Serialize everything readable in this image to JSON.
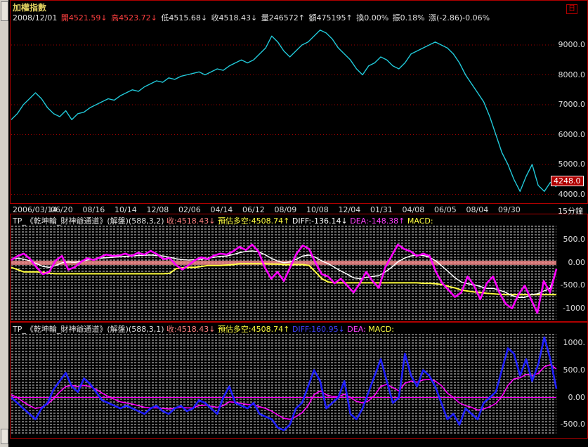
{
  "app": {
    "title": "加權指數",
    "period": "15分鐘",
    "last_price_tag": "4248.0"
  },
  "info": {
    "date": "2008/12/01",
    "open": "開4521.59↓",
    "high": "高4523.72↓",
    "low": "低4515.68↓",
    "close": "收4518.43↓",
    "volume": "量246572↑",
    "amount": "額475195↑",
    "turnover": "換0.00%",
    "amplitude": "振0.18%",
    "change": "漲(-2.86)-0.06%"
  },
  "colors": {
    "price_line": "#21c8d8",
    "magenta": "#ff00ff",
    "white": "#ffffff",
    "yellow": "#ffff40",
    "blue": "#2020ff",
    "border_red": "#b00000",
    "zero_band": "#ff9090"
  },
  "indicator1": {
    "name": "TP_《乾坤輪_財神爺通道》(解盤)(588,3,2)",
    "close": "收:4518.43↓",
    "estimate": "預估多空:4508.74↑",
    "diff": "DIFF:-136.14↓",
    "dea": "DEA:-148.38↑",
    "macd": "MACD:"
  },
  "indicator2": {
    "name": "TP_《乾坤輪_財神爺通道》(解盤)(588,3,1)",
    "close": "收:4518.43↓",
    "estimate": "預估多空:4508.74↑",
    "diff": "DIFF:160.95↓",
    "dea": "DEA:",
    "macd": "MACD:"
  },
  "chart_data": [
    {
      "type": "line",
      "title": "加權指數",
      "x_tick_labels": [
        "2006/03/14",
        "06/20",
        "08/16",
        "10/14",
        "12/08",
        "02/06",
        "04/14",
        "06/12",
        "08/09",
        "10/08",
        "12/04",
        "01/31",
        "04/08",
        "06/05",
        "08/04",
        "09/30"
      ],
      "y_tick_labels": [
        "9000.0",
        "8000.0",
        "7000.0",
        "6000.0",
        "5000.0",
        "4000.0"
      ],
      "ylim": [
        3800,
        9800
      ],
      "series": [
        {
          "values": [
            6500,
            6700,
            7000,
            7200,
            7400,
            7200,
            6900,
            6700,
            6600,
            6800,
            6500,
            6700,
            6750,
            6900,
            7000,
            7100,
            7200,
            7150,
            7300,
            7400,
            7500,
            7450,
            7600,
            7700,
            7800,
            7750,
            7900,
            7850,
            7950,
            8000,
            8050,
            8100,
            8000,
            8100,
            8200,
            8150,
            8300,
            8400,
            8500,
            8400,
            8500,
            8700,
            8900,
            9300,
            9100,
            8800,
            8600,
            8800,
            9000,
            9100,
            9300,
            9500,
            9400,
            9200,
            8900,
            8700,
            8500,
            8200,
            8000,
            8300,
            8400,
            8600,
            8500,
            8300,
            8200,
            8400,
            8700,
            8800,
            8900,
            9000,
            9100,
            9000,
            8900,
            8700,
            8400,
            8000,
            7700,
            7400,
            7100,
            6600,
            6000,
            5400,
            5000,
            4500,
            4100,
            4600,
            5000,
            4300,
            4100,
            4400,
            4250
          ]
        }
      ]
    },
    {
      "type": "line",
      "title": "TP_《乾坤輪_財神爺通道》(解盤)(588,3,2)",
      "y_tick_labels": [
        "500.0",
        "0.00",
        "-500.0",
        "-1000"
      ],
      "ylim": [
        -1250,
        800
      ],
      "series": [
        {
          "name": "DIFF",
          "values": [
            60,
            150,
            200,
            80,
            -100,
            -250,
            -200,
            50,
            150,
            -150,
            -100,
            20,
            100,
            60,
            120,
            180,
            150,
            160,
            200,
            150,
            220,
            180,
            260,
            190,
            80,
            100,
            -50,
            -150,
            -50,
            60,
            120,
            80,
            160,
            200,
            180,
            250,
            350,
            280,
            400,
            250,
            -100,
            -350,
            -200,
            -400,
            -100,
            200,
            380,
            300,
            0,
            -250,
            -300,
            -450,
            -350,
            -500,
            -650,
            -450,
            -200,
            -400,
            -550,
            -100,
            150,
            400,
            300,
            250,
            150,
            200,
            150,
            -200,
            -450,
            -600,
            -750,
            -650,
            -300,
            -500,
            -800,
            -450,
            -300,
            -650,
            -900,
            -1000,
            -700,
            -500,
            -800,
            -1100,
            -400,
            -650,
            -136
          ]
        },
        {
          "name": "DEA",
          "values": [
            80,
            100,
            80,
            40,
            -20,
            -80,
            -100,
            -60,
            0,
            20,
            10,
            30,
            60,
            80,
            100,
            110,
            120,
            130,
            140,
            150,
            160,
            165,
            170,
            160,
            150,
            120,
            90,
            70,
            60,
            70,
            80,
            100,
            120,
            140,
            150,
            180,
            220,
            250,
            260,
            240,
            180,
            100,
            40,
            0,
            20,
            80,
            150,
            170,
            120,
            40,
            -20,
            -100,
            -180,
            -250,
            -330,
            -350,
            -320,
            -300,
            -280,
            -200,
            -100,
            20,
            100,
            150,
            170,
            160,
            120,
            40,
            -80,
            -200,
            -330,
            -420,
            -460,
            -480,
            -520,
            -560,
            -560,
            -600,
            -650,
            -720,
            -760,
            -760,
            -700,
            -680,
            -620,
            -560,
            -148
          ]
        },
        {
          "name": "MACD",
          "values": [
            -100,
            -150,
            -200,
            -200,
            -200,
            -210,
            -230,
            -240,
            -240,
            -240,
            -240,
            -240,
            -240,
            -240,
            -240,
            -240,
            -240,
            -240,
            -240,
            -240,
            -240,
            -240,
            -240,
            -240,
            -240,
            -230,
            -130,
            -110,
            -100,
            -100,
            -80,
            -60,
            -60,
            -60,
            -50,
            -40,
            -20,
            -20,
            -20,
            -20,
            -20,
            -30,
            -30,
            -40,
            -40,
            -40,
            -40,
            -60,
            -200,
            -350,
            -420,
            -440,
            -440,
            -440,
            -440,
            -440,
            -440,
            -440,
            -440,
            -440,
            -440,
            -440,
            -440,
            -440,
            -440,
            -450,
            -450,
            -460,
            -480,
            -520,
            -550,
            -600,
            -620,
            -640,
            -650,
            -670,
            -680,
            -690,
            -700,
            -700,
            -700,
            -700,
            -700,
            -700,
            -700,
            -700,
            -700
          ]
        }
      ]
    },
    {
      "type": "line",
      "title": "TP_《乾坤輪_財神爺通道》(解盤)(588,3,1)",
      "y_tick_labels": [
        "1000.",
        "500.0",
        "0.00",
        "-500.0"
      ],
      "ylim": [
        -700,
        1150
      ],
      "series": [
        {
          "name": "DIFF",
          "values": [
            0,
            -100,
            -200,
            -300,
            -400,
            -200,
            -100,
            150,
            300,
            450,
            200,
            100,
            350,
            250,
            100,
            -50,
            -100,
            -150,
            -200,
            -150,
            -200,
            -250,
            -300,
            -200,
            -150,
            -250,
            -300,
            -200,
            -150,
            -250,
            -200,
            -50,
            -100,
            -200,
            -300,
            0,
            200,
            -100,
            -150,
            -200,
            -100,
            -300,
            -350,
            -400,
            -550,
            -600,
            -500,
            -200,
            -100,
            200,
            500,
            300,
            -200,
            -100,
            0,
            300,
            -300,
            -400,
            -200,
            100,
            400,
            700,
            300,
            -100,
            0,
            800,
            400,
            200,
            500,
            400,
            200,
            -100,
            -400,
            -300,
            -500,
            -200,
            -300,
            -400,
            -100,
            0,
            100,
            500,
            900,
            800,
            400,
            700,
            300,
            600,
            1100,
            700,
            160
          ]
        },
        {
          "name": "DEA",
          "values": [
            50,
            0,
            -80,
            -150,
            -200,
            -180,
            -120,
            -20,
            100,
            200,
            220,
            200,
            220,
            200,
            150,
            80,
            20,
            -30,
            -80,
            -100,
            -120,
            -150,
            -180,
            -190,
            -190,
            -200,
            -210,
            -200,
            -180,
            -190,
            -190,
            -150,
            -140,
            -160,
            -180,
            -150,
            -80,
            -90,
            -110,
            -130,
            -130,
            -170,
            -200,
            -250,
            -320,
            -380,
            -400,
            -350,
            -280,
            -150,
            50,
            120,
            50,
            20,
            10,
            60,
            0,
            -70,
            -100,
            -60,
            40,
            200,
            240,
            180,
            120,
            260,
            300,
            280,
            320,
            330,
            300,
            220,
            80,
            0,
            -100,
            -150,
            -180,
            -230,
            -210,
            -170,
            -110,
            20,
            220,
            340,
            360,
            420,
            400,
            440,
            560,
            600,
            520
          ]
        }
      ]
    }
  ]
}
